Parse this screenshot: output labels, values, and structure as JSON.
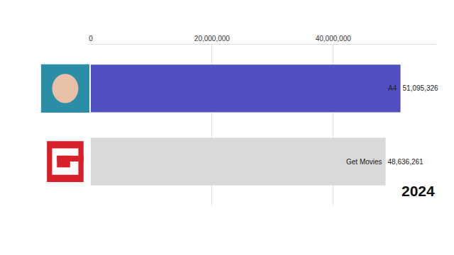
{
  "chart_data": {
    "type": "bar",
    "orientation": "horizontal",
    "categories": [
      "A4",
      "Get Movies"
    ],
    "values": [
      51095326,
      48636261
    ],
    "value_labels": [
      "51,095,326",
      "48,636,261"
    ],
    "colors": [
      "#5050c2",
      "#d9d9d9"
    ],
    "xlim": [
      0,
      57000000
    ],
    "xticks": [
      0,
      {
        "value": 20000000,
        "label": "20,000,000"
      },
      {
        "value": 40000000,
        "label": "40,000,000"
      }
    ],
    "grid": true,
    "data_labels": true,
    "tick_labels": "x",
    "annotations": [
      "2024"
    ]
  }
}
